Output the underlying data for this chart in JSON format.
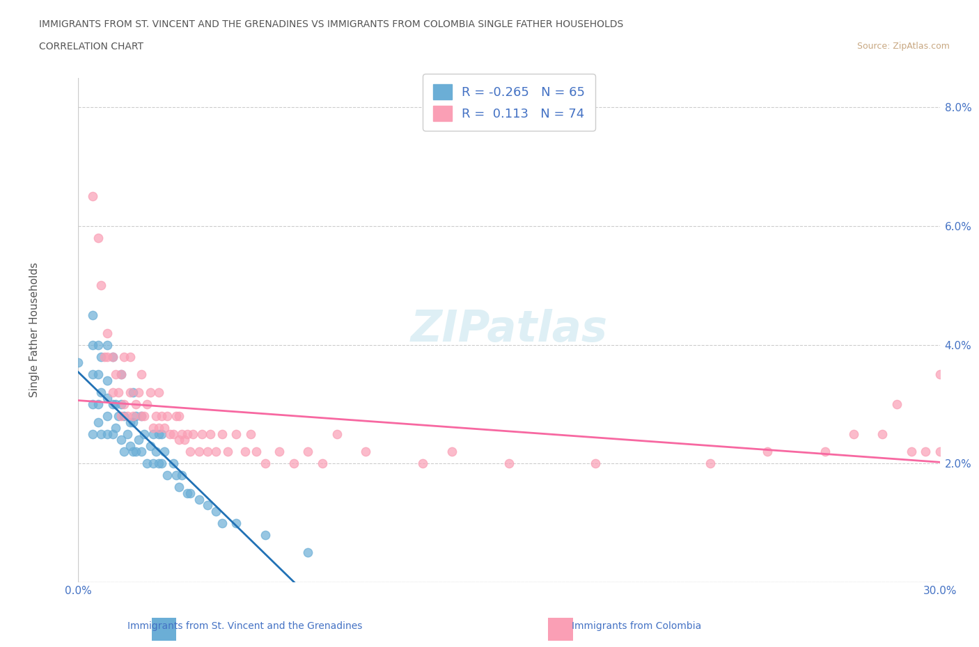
{
  "title_line1": "IMMIGRANTS FROM ST. VINCENT AND THE GRENADINES VS IMMIGRANTS FROM COLOMBIA SINGLE FATHER HOUSEHOLDS",
  "title_line2": "CORRELATION CHART",
  "source": "Source: ZipAtlas.com",
  "xlabel": "",
  "ylabel": "Single Father Households",
  "xlim": [
    0.0,
    0.3
  ],
  "ylim": [
    0.0,
    0.085
  ],
  "xticks": [
    0.0,
    0.05,
    0.1,
    0.15,
    0.2,
    0.25,
    0.3
  ],
  "xticklabels": [
    "0.0%",
    "",
    "",
    "",
    "",
    "",
    "30.0%"
  ],
  "yticks": [
    0.0,
    0.02,
    0.04,
    0.06,
    0.08
  ],
  "yticklabels": [
    "",
    "2.0%",
    "4.0%",
    "6.0%",
    "8.0%"
  ],
  "legend_label1": "Immigrants from St. Vincent and the Grenadines",
  "legend_label2": "Immigrants from Colombia",
  "R1": -0.265,
  "N1": 65,
  "R2": 0.113,
  "N2": 74,
  "color1": "#6baed6",
  "color2": "#fa9fb5",
  "trendline1_color": "#2171b5",
  "trendline2_color": "#f768a1",
  "watermark": "ZIPatlas",
  "background_color": "#ffffff",
  "grid_color": "#cccccc",
  "title_color": "#555555",
  "axis_label_color": "#555555",
  "tick_label_color": "#4472c4",
  "scatter1_x": [
    0.0,
    0.005,
    0.005,
    0.005,
    0.005,
    0.005,
    0.007,
    0.007,
    0.007,
    0.007,
    0.008,
    0.008,
    0.008,
    0.01,
    0.01,
    0.01,
    0.01,
    0.01,
    0.012,
    0.012,
    0.012,
    0.013,
    0.013,
    0.014,
    0.015,
    0.015,
    0.015,
    0.016,
    0.016,
    0.017,
    0.018,
    0.018,
    0.019,
    0.019,
    0.019,
    0.02,
    0.02,
    0.021,
    0.022,
    0.022,
    0.023,
    0.024,
    0.025,
    0.026,
    0.026,
    0.027,
    0.028,
    0.028,
    0.029,
    0.029,
    0.03,
    0.031,
    0.033,
    0.034,
    0.035,
    0.036,
    0.038,
    0.039,
    0.042,
    0.045,
    0.048,
    0.05,
    0.055,
    0.065,
    0.08
  ],
  "scatter1_y": [
    0.037,
    0.025,
    0.03,
    0.035,
    0.04,
    0.045,
    0.027,
    0.03,
    0.035,
    0.04,
    0.025,
    0.032,
    0.038,
    0.025,
    0.028,
    0.031,
    0.034,
    0.04,
    0.025,
    0.03,
    0.038,
    0.026,
    0.03,
    0.028,
    0.024,
    0.03,
    0.035,
    0.022,
    0.028,
    0.025,
    0.023,
    0.027,
    0.022,
    0.027,
    0.032,
    0.022,
    0.028,
    0.024,
    0.022,
    0.028,
    0.025,
    0.02,
    0.023,
    0.02,
    0.025,
    0.022,
    0.02,
    0.025,
    0.02,
    0.025,
    0.022,
    0.018,
    0.02,
    0.018,
    0.016,
    0.018,
    0.015,
    0.015,
    0.014,
    0.013,
    0.012,
    0.01,
    0.01,
    0.008,
    0.005
  ],
  "scatter2_x": [
    0.005,
    0.007,
    0.008,
    0.009,
    0.01,
    0.01,
    0.012,
    0.012,
    0.013,
    0.014,
    0.015,
    0.015,
    0.016,
    0.016,
    0.017,
    0.018,
    0.018,
    0.019,
    0.02,
    0.021,
    0.022,
    0.022,
    0.023,
    0.024,
    0.025,
    0.026,
    0.027,
    0.028,
    0.028,
    0.029,
    0.03,
    0.031,
    0.032,
    0.033,
    0.034,
    0.035,
    0.035,
    0.036,
    0.037,
    0.038,
    0.039,
    0.04,
    0.042,
    0.043,
    0.045,
    0.046,
    0.048,
    0.05,
    0.052,
    0.055,
    0.058,
    0.06,
    0.062,
    0.065,
    0.07,
    0.075,
    0.08,
    0.085,
    0.09,
    0.1,
    0.12,
    0.13,
    0.15,
    0.18,
    0.22,
    0.24,
    0.26,
    0.27,
    0.28,
    0.285,
    0.29,
    0.295,
    0.3,
    0.3
  ],
  "scatter2_y": [
    0.065,
    0.058,
    0.05,
    0.038,
    0.038,
    0.042,
    0.032,
    0.038,
    0.035,
    0.032,
    0.028,
    0.035,
    0.03,
    0.038,
    0.028,
    0.032,
    0.038,
    0.028,
    0.03,
    0.032,
    0.028,
    0.035,
    0.028,
    0.03,
    0.032,
    0.026,
    0.028,
    0.026,
    0.032,
    0.028,
    0.026,
    0.028,
    0.025,
    0.025,
    0.028,
    0.024,
    0.028,
    0.025,
    0.024,
    0.025,
    0.022,
    0.025,
    0.022,
    0.025,
    0.022,
    0.025,
    0.022,
    0.025,
    0.022,
    0.025,
    0.022,
    0.025,
    0.022,
    0.02,
    0.022,
    0.02,
    0.022,
    0.02,
    0.025,
    0.022,
    0.02,
    0.022,
    0.02,
    0.02,
    0.02,
    0.022,
    0.022,
    0.025,
    0.025,
    0.03,
    0.022,
    0.022,
    0.022,
    0.035
  ]
}
